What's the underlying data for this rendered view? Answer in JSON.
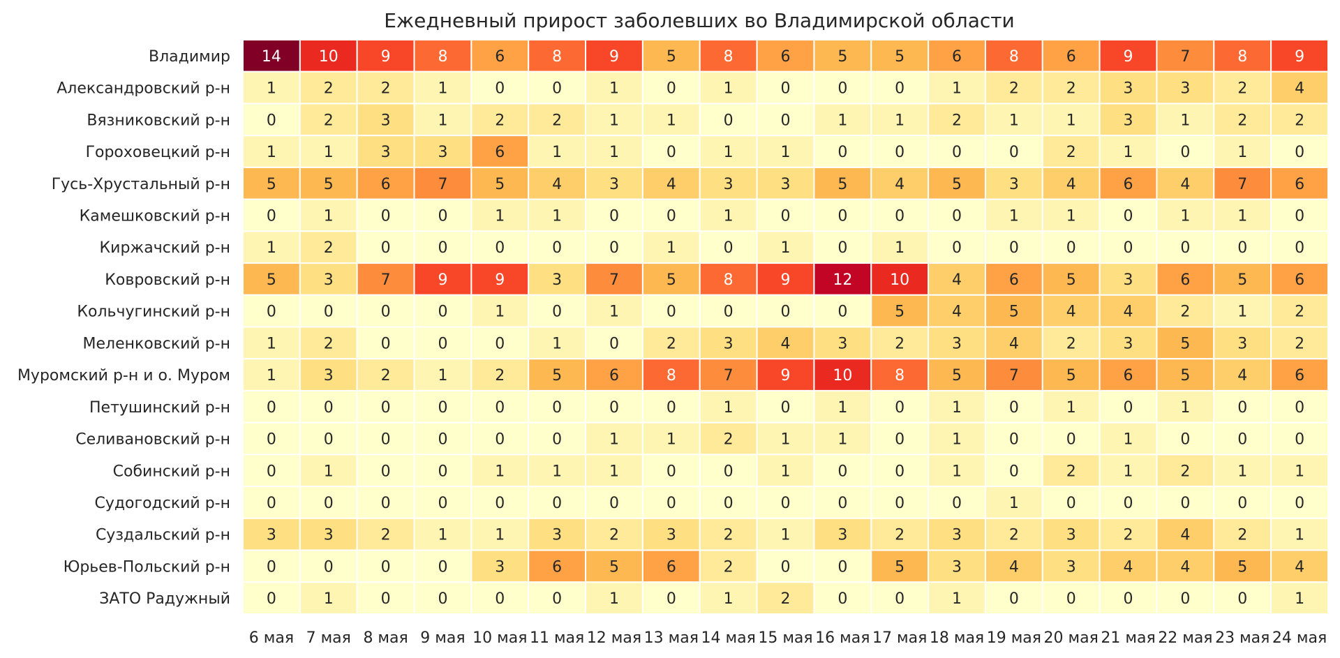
{
  "chart_data": {
    "type": "heatmap",
    "title": "Ежедневный прирост заболевших во Владимирской области",
    "xlabel": "",
    "ylabel": "",
    "colormap": "YlOrRd",
    "value_range": [
      0,
      14
    ],
    "x": [
      "6 мая",
      "7 мая",
      "8 мая",
      "9 мая",
      "10 мая",
      "11 мая",
      "12 мая",
      "13 мая",
      "14 мая",
      "15 мая",
      "16 мая",
      "17 мая",
      "18 мая",
      "19 мая",
      "20 мая",
      "21 мая",
      "22 мая",
      "23 мая",
      "24 мая"
    ],
    "y": [
      "Владимир",
      "Александровский р-н",
      "Вязниковский р-н",
      "Гороховецкий р-н",
      "Гусь-Хрустальный р-н",
      "Камешковский р-н",
      "Киржачский р-н",
      "Ковровский р-н",
      "Кольчугинский р-н",
      "Меленковский р-н",
      "Муромский р-н и о. Муром",
      "Петушинский р-н",
      "Селивановский р-н",
      "Собинский р-н",
      "Судогодский р-н",
      "Суздальский р-н",
      "Юрьев-Польский р-н",
      "ЗАТО Радужный"
    ],
    "values": [
      [
        14,
        10,
        9,
        8,
        6,
        8,
        9,
        5,
        8,
        6,
        5,
        5,
        6,
        8,
        6,
        9,
        7,
        8,
        9
      ],
      [
        1,
        2,
        2,
        1,
        0,
        0,
        1,
        0,
        1,
        0,
        0,
        0,
        1,
        2,
        2,
        3,
        3,
        2,
        4
      ],
      [
        0,
        2,
        3,
        1,
        2,
        2,
        1,
        1,
        0,
        0,
        1,
        1,
        2,
        1,
        1,
        3,
        1,
        2,
        2
      ],
      [
        1,
        1,
        3,
        3,
        6,
        1,
        1,
        0,
        1,
        1,
        0,
        0,
        0,
        0,
        2,
        1,
        0,
        1,
        0
      ],
      [
        5,
        5,
        6,
        7,
        5,
        4,
        3,
        4,
        3,
        3,
        5,
        4,
        5,
        3,
        4,
        6,
        4,
        7,
        6
      ],
      [
        0,
        1,
        0,
        0,
        1,
        1,
        0,
        0,
        1,
        0,
        0,
        0,
        0,
        1,
        1,
        0,
        1,
        1,
        0
      ],
      [
        1,
        2,
        0,
        0,
        0,
        0,
        0,
        1,
        0,
        1,
        0,
        1,
        0,
        0,
        0,
        0,
        0,
        0,
        0
      ],
      [
        5,
        3,
        7,
        9,
        9,
        3,
        7,
        5,
        8,
        9,
        12,
        10,
        4,
        6,
        5,
        3,
        6,
        5,
        6
      ],
      [
        0,
        0,
        0,
        0,
        1,
        0,
        1,
        0,
        0,
        0,
        0,
        5,
        4,
        5,
        4,
        4,
        2,
        1,
        2
      ],
      [
        1,
        2,
        0,
        0,
        0,
        1,
        0,
        2,
        3,
        4,
        3,
        2,
        3,
        4,
        2,
        3,
        5,
        3,
        2
      ],
      [
        1,
        3,
        2,
        1,
        2,
        5,
        6,
        8,
        7,
        9,
        10,
        8,
        5,
        7,
        5,
        6,
        5,
        4,
        6
      ],
      [
        0,
        0,
        0,
        0,
        0,
        0,
        0,
        0,
        1,
        0,
        1,
        0,
        1,
        0,
        1,
        0,
        1,
        0,
        0
      ],
      [
        0,
        0,
        0,
        0,
        0,
        0,
        1,
        1,
        2,
        1,
        1,
        0,
        1,
        0,
        0,
        1,
        0,
        0,
        0
      ],
      [
        0,
        1,
        0,
        0,
        1,
        1,
        1,
        0,
        0,
        1,
        0,
        0,
        1,
        0,
        2,
        1,
        2,
        1,
        1
      ],
      [
        0,
        0,
        0,
        0,
        0,
        0,
        0,
        0,
        0,
        0,
        0,
        0,
        0,
        1,
        0,
        0,
        0,
        0,
        0
      ],
      [
        3,
        3,
        2,
        1,
        1,
        3,
        2,
        3,
        2,
        1,
        3,
        2,
        3,
        2,
        3,
        2,
        4,
        2,
        1
      ],
      [
        0,
        0,
        0,
        0,
        3,
        6,
        5,
        6,
        2,
        0,
        0,
        5,
        3,
        4,
        3,
        4,
        4,
        5,
        4
      ],
      [
        0,
        1,
        0,
        0,
        0,
        0,
        1,
        0,
        1,
        2,
        0,
        0,
        1,
        0,
        0,
        0,
        0,
        0,
        1
      ]
    ],
    "annotations": "cell values shown",
    "grid": false,
    "legend": "none"
  }
}
